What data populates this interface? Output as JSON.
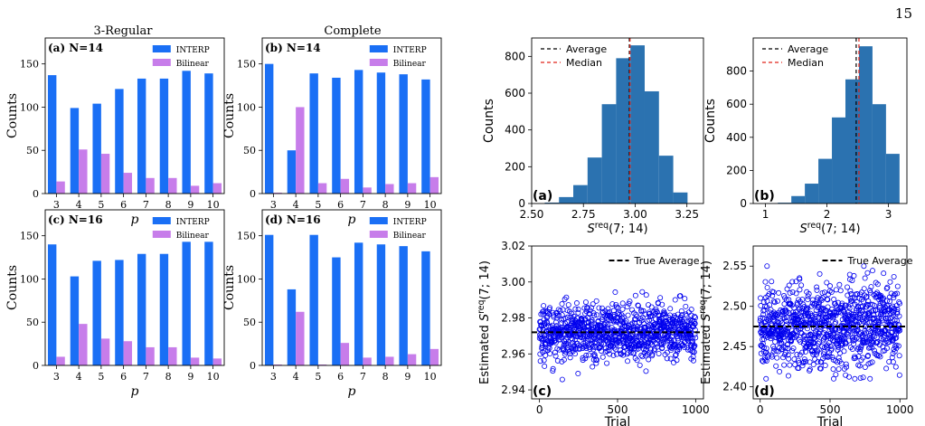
{
  "page_number": "15",
  "column_titles": [
    "3-Regular",
    "Complete"
  ],
  "colors": {
    "interp": "#1a6ff5",
    "bilinear": "#c77dea",
    "hist": "#2b72b0",
    "average_line": "#000000",
    "median_line": "#e0241b",
    "scatter": "#0000ee"
  },
  "chart_data": [
    {
      "type": "bar",
      "panel_label": "(a) N=14",
      "categories": [
        "3",
        "4",
        "5",
        "6",
        "7",
        "8",
        "9",
        "10"
      ],
      "series": [
        {
          "name": "INTERP",
          "values": [
            137,
            99,
            104,
            121,
            133,
            133,
            142,
            139
          ]
        },
        {
          "name": "Bilinear",
          "values": [
            14,
            51,
            46,
            24,
            18,
            18,
            9,
            12
          ]
        }
      ],
      "xlabel": "p",
      "ylabel": "Counts",
      "ylim": [
        0,
        180
      ],
      "yticks": [
        0,
        50,
        100,
        150
      ],
      "legend": "top-right"
    },
    {
      "type": "bar",
      "panel_label": "(b) N=14",
      "categories": [
        "3",
        "4",
        "5",
        "6",
        "7",
        "8",
        "9",
        "10"
      ],
      "series": [
        {
          "name": "INTERP",
          "values": [
            150,
            50,
            139,
            134,
            143,
            140,
            138,
            132
          ]
        },
        {
          "name": "Bilinear",
          "values": [
            1,
            100,
            12,
            17,
            7,
            11,
            12,
            19
          ]
        }
      ],
      "xlabel": "p",
      "ylabel": "Counts",
      "ylim": [
        0,
        180
      ],
      "yticks": [
        0,
        50,
        100,
        150
      ],
      "legend": "top-right"
    },
    {
      "type": "bar",
      "panel_label": "(c) N=16",
      "categories": [
        "3",
        "4",
        "5",
        "6",
        "7",
        "8",
        "9",
        "10"
      ],
      "series": [
        {
          "name": "INTERP",
          "values": [
            140,
            103,
            121,
            122,
            129,
            129,
            143,
            143
          ]
        },
        {
          "name": "Bilinear",
          "values": [
            10,
            48,
            31,
            28,
            21,
            21,
            9,
            8
          ]
        }
      ],
      "xlabel": "p",
      "ylabel": "Counts",
      "ylim": [
        0,
        180
      ],
      "yticks": [
        0,
        50,
        100,
        150
      ],
      "legend": "top-right"
    },
    {
      "type": "bar",
      "panel_label": "(d) N=16",
      "categories": [
        "3",
        "4",
        "5",
        "6",
        "7",
        "8",
        "9",
        "10"
      ],
      "series": [
        {
          "name": "INTERP",
          "values": [
            151,
            88,
            151,
            125,
            142,
            140,
            138,
            132
          ]
        },
        {
          "name": "Bilinear",
          "values": [
            1,
            62,
            1,
            26,
            9,
            10,
            13,
            19
          ]
        }
      ],
      "xlabel": "p",
      "ylabel": "Counts",
      "ylim": [
        0,
        180
      ],
      "yticks": [
        0,
        50,
        100,
        150
      ],
      "legend": "top-right"
    },
    {
      "type": "histogram",
      "panel_label": "(a)",
      "bins": [
        {
          "x0": 2.563,
          "x1": 2.632,
          "count": 5
        },
        {
          "x0": 2.632,
          "x1": 2.701,
          "count": 35
        },
        {
          "x0": 2.701,
          "x1": 2.77,
          "count": 100
        },
        {
          "x0": 2.77,
          "x1": 2.839,
          "count": 250
        },
        {
          "x0": 2.839,
          "x1": 2.908,
          "count": 540
        },
        {
          "x0": 2.908,
          "x1": 2.977,
          "count": 790
        },
        {
          "x0": 2.977,
          "x1": 3.046,
          "count": 860
        },
        {
          "x0": 3.046,
          "x1": 3.115,
          "count": 610
        },
        {
          "x0": 3.115,
          "x1": 3.184,
          "count": 260
        },
        {
          "x0": 3.184,
          "x1": 3.253,
          "count": 60
        }
      ],
      "average": 2.972,
      "median": 2.975,
      "xlabel": "S^req(7; 14)",
      "ylabel": "Counts",
      "xlim": [
        2.5,
        3.33
      ],
      "ylim": [
        0,
        900
      ],
      "xticks": [
        "2.50",
        "2.75",
        "3.00",
        "3.25"
      ],
      "yticks": [
        0,
        200,
        400,
        600,
        800
      ],
      "legend": [
        "Average",
        "Median"
      ],
      "legend_position": "top-left"
    },
    {
      "type": "histogram",
      "panel_label": "(b)",
      "bins": [
        {
          "x0": 0.98,
          "x1": 1.2,
          "count": 2
        },
        {
          "x0": 1.2,
          "x1": 1.42,
          "count": 5
        },
        {
          "x0": 1.42,
          "x1": 1.64,
          "count": 45
        },
        {
          "x0": 1.64,
          "x1": 1.86,
          "count": 120
        },
        {
          "x0": 1.86,
          "x1": 2.08,
          "count": 270
        },
        {
          "x0": 2.08,
          "x1": 2.3,
          "count": 520
        },
        {
          "x0": 2.3,
          "x1": 2.52,
          "count": 750
        },
        {
          "x0": 2.52,
          "x1": 2.74,
          "count": 950
        },
        {
          "x0": 2.74,
          "x1": 2.96,
          "count": 600
        },
        {
          "x0": 2.96,
          "x1": 3.18,
          "count": 300
        }
      ],
      "average": 2.475,
      "median": 2.52,
      "xlabel": "S^req(7; 14)",
      "ylabel": "Counts",
      "xlim": [
        0.8,
        3.3
      ],
      "ylim": [
        0,
        1000
      ],
      "xticks": [
        "1",
        "2",
        "3"
      ],
      "yticks": [
        0,
        200,
        400,
        600,
        800
      ],
      "legend": [
        "Average",
        "Median"
      ],
      "legend_position": "top-left"
    },
    {
      "type": "scatter",
      "panel_label": "(c)",
      "n_points": 1000,
      "center": 2.972,
      "spread": 0.0075,
      "min": 2.942,
      "max": 3.005,
      "true_average": 2.972,
      "xlabel": "Trial",
      "ylabel": "Estimated S^req(7; 14)",
      "xlim": [
        -50,
        1050
      ],
      "ylim": [
        2.935,
        3.02
      ],
      "xticks": [
        0,
        500,
        1000
      ],
      "yticks": [
        "2.94",
        "2.96",
        "2.98",
        "3.00",
        "3.02"
      ],
      "legend": [
        "True Average"
      ],
      "legend_position": "top-right"
    },
    {
      "type": "scatter",
      "panel_label": "(d)",
      "n_points": 1000,
      "center": 2.475,
      "spread": 0.025,
      "min": 2.41,
      "max": 2.55,
      "true_average": 2.475,
      "xlabel": "Trial",
      "ylabel": "Estimated S^req(7; 14)",
      "xlim": [
        -50,
        1050
      ],
      "ylim": [
        2.385,
        2.575
      ],
      "xticks": [
        0,
        500,
        1000
      ],
      "yticks": [
        "2.40",
        "2.45",
        "2.50",
        "2.55"
      ],
      "legend": [
        "True Average"
      ],
      "legend_position": "top-right"
    }
  ]
}
